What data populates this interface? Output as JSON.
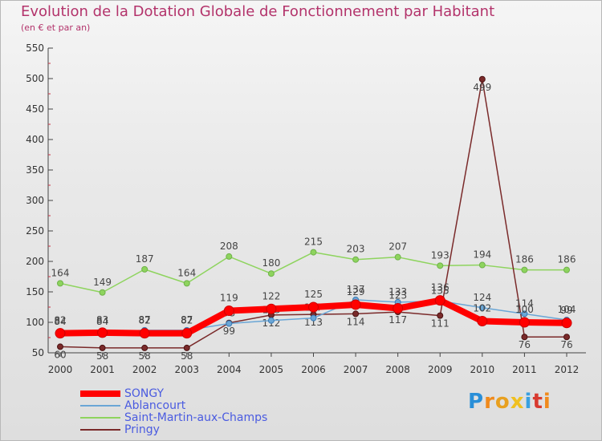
{
  "header": {
    "title": "Evolution de la Dotation Globale de Fonctionnement par Habitant",
    "subtitle": "(en € et par an)"
  },
  "logo": {
    "text": "Proxiti"
  },
  "chart_data": {
    "type": "line",
    "title": "Evolution de la Dotation Globale de Fonctionnement par Habitant",
    "subtitle": "(en € et par an)",
    "xlabel": "",
    "ylabel": "",
    "ylim": [
      50,
      550
    ],
    "yticks": [
      50,
      100,
      150,
      200,
      250,
      300,
      350,
      400,
      450,
      500,
      550
    ],
    "grid": false,
    "legend_position": "bottom-left",
    "categories": [
      "2000",
      "2001",
      "2002",
      "2003",
      "2004",
      "2005",
      "2006",
      "2007",
      "2008",
      "2009",
      "2010",
      "2011",
      "2012"
    ],
    "series": [
      {
        "name": "SONGY",
        "color": "#ff0000",
        "values": [
          82,
          83,
          82,
          82,
          119,
          122,
          125,
          129,
          123,
          136,
          102,
          100,
          99
        ]
      },
      {
        "name": "Ablancourt",
        "color": "#6aa6d6",
        "values": [
          84,
          84,
          87,
          87,
          98,
          103,
          107,
          137,
          133,
          135,
          124,
          114,
          104
        ]
      },
      {
        "name": "Saint-Martin-aux-Champs",
        "color": "#8ed45e",
        "values": [
          164,
          149,
          187,
          164,
          208,
          180,
          215,
          203,
          207,
          193,
          194,
          186,
          186
        ]
      },
      {
        "name": "Pringy",
        "color": "#7a2a2a",
        "values": [
          60,
          58,
          58,
          58,
          99,
          112,
          113,
          114,
          117,
          111,
          499,
          76,
          76
        ]
      }
    ]
  }
}
